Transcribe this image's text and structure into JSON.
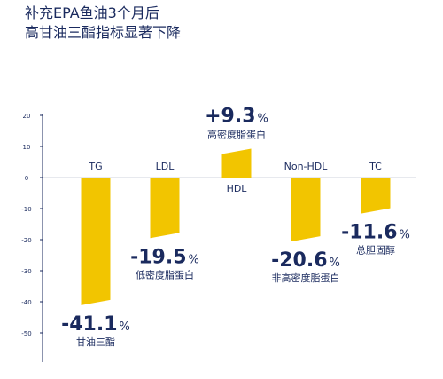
{
  "title": {
    "line1": "补充EPA鱼油3个月后",
    "line2": "高甘油三酯指标显著下降"
  },
  "colors": {
    "bar": "#f2c500",
    "text": "#1a2a5e",
    "axis": "#1a2a5e",
    "zero_line": "#cfd3dc"
  },
  "chart_data": {
    "type": "bar",
    "categories": [
      "TG",
      "LDL",
      "HDL",
      "Non-HDL",
      "TC"
    ],
    "values": [
      -41.1,
      -19.5,
      9.3,
      -20.6,
      -11.6
    ],
    "value_labels": [
      "-41.1",
      "-19.5",
      "+9.3",
      "-20.6",
      "-11.6"
    ],
    "unit": "%",
    "descriptions": [
      "甘油三酯",
      "低密度脂蛋白",
      "高密度脂蛋白",
      "非高密度脂蛋白",
      "总胆固醇"
    ],
    "ylim": [
      -50,
      20
    ],
    "yticks": [
      20,
      10,
      0,
      -10,
      -20,
      -30,
      -40,
      -50
    ],
    "title": "补充EPA鱼油3个月后 高甘油三酯指标显著下降",
    "xlabel": "",
    "ylabel": "",
    "grid": false
  }
}
